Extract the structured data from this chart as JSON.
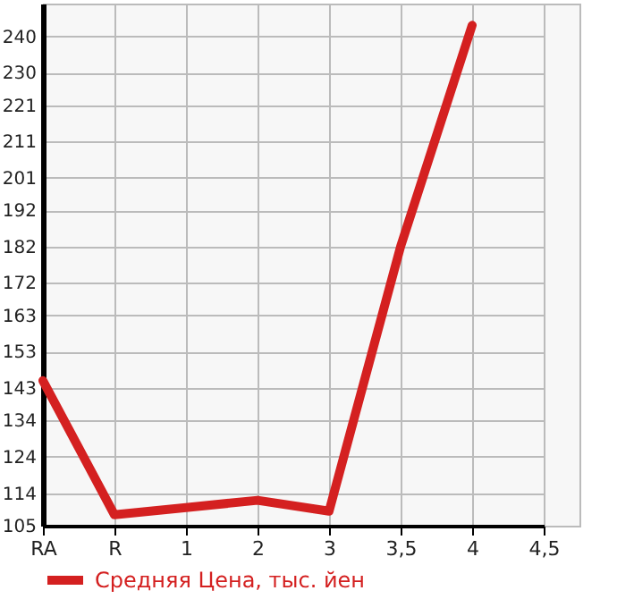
{
  "chart_data": {
    "type": "line",
    "categories": [
      "RA",
      "R",
      "1",
      "2",
      "3",
      "3,5",
      "4",
      "4,5"
    ],
    "series": [
      {
        "name": "Средняя Цена, тыс. йен",
        "color": "#d42020",
        "values": [
          145,
          108,
          110,
          112,
          109,
          182,
          243,
          null
        ]
      }
    ],
    "ylim": [
      105,
      249
    ],
    "yticks": [
      105,
      114,
      124,
      134,
      143,
      153,
      163,
      172,
      182,
      192,
      201,
      211,
      221,
      230,
      240
    ],
    "grid": true,
    "legend": "bottom left",
    "marker": "none",
    "line_style": "solid"
  }
}
